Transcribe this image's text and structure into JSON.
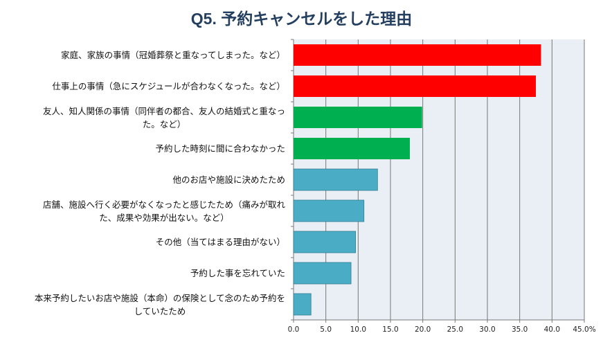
{
  "chart_data": {
    "type": "bar",
    "orientation": "horizontal",
    "title": "Q5. 予約キャンセルをした理由",
    "categories": [
      [
        "家庭、家族の事情（冠婚葬祭と重なってしまった。など）"
      ],
      [
        "仕事上の事情（急にスケジュールが合わなくなった。など）"
      ],
      [
        "友人、知人関係の事情（同伴者の都合、友人の結婚式と重なっ",
        "た。など）"
      ],
      [
        "予約した時刻に間に合わなかった"
      ],
      [
        "他のお店や施設に決めたため"
      ],
      [
        "店舗、施設へ行く必要がなくなったと感じたため（痛みが取れ",
        "た、成果や効果が出ない。など）"
      ],
      [
        "その他（当てはまる理由がない）"
      ],
      [
        "予約した事を忘れていた"
      ],
      [
        "本来予約したいお店や施設（本命）の保険として念のため予約を",
        "していたため"
      ]
    ],
    "values": [
      38.3,
      37.5,
      19.9,
      18.0,
      13.0,
      10.9,
      9.6,
      8.9,
      2.7
    ],
    "bar_colors": [
      "#ff0000",
      "#ff0000",
      "#00b050",
      "#00b050",
      "#4bacc6",
      "#4bacc6",
      "#4bacc6",
      "#4bacc6",
      "#4bacc6"
    ],
    "xlim": [
      0,
      45
    ],
    "xticks": [
      "0.0",
      "5.0",
      "10.0",
      "15.0",
      "20.0",
      "25.0",
      "30.0",
      "35.0",
      "40.0",
      "45.0%"
    ],
    "grid": true,
    "plot_background": "#e9eff4",
    "title_color": "#243f60"
  }
}
